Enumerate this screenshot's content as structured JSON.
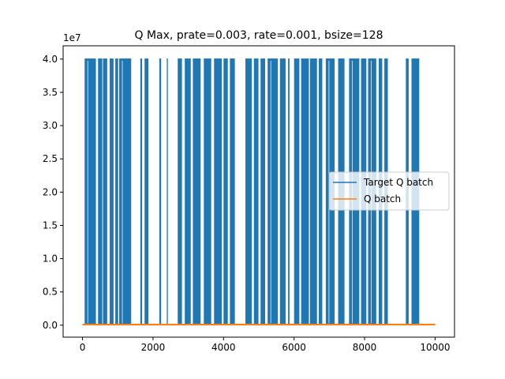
{
  "chart_data": {
    "type": "line",
    "title": "Q Max, prate=0.003, rate=0.001, bsize=128",
    "xlabel": "",
    "ylabel": "",
    "y_offset_label": "1e7",
    "y_scale": 10000000,
    "xlim": [
      -550,
      10550
    ],
    "ylim": [
      -1800000,
      42000000
    ],
    "x_ticks": [
      0,
      2000,
      4000,
      6000,
      8000,
      10000
    ],
    "x_tick_labels": [
      "0",
      "2000",
      "4000",
      "6000",
      "8000",
      "10000"
    ],
    "y_ticks": [
      0,
      5000000,
      10000000,
      15000000,
      20000000,
      25000000,
      30000000,
      35000000,
      40000000
    ],
    "y_tick_labels": [
      "0.0",
      "0.5",
      "1.0",
      "1.5",
      "2.0",
      "2.5",
      "3.0",
      "3.5",
      "4.0"
    ],
    "grid": false,
    "legend": {
      "position": "center-right"
    },
    "series": [
      {
        "name": "Target Q batch",
        "color": "#1f77b4",
        "pattern": "baseline near 0 with frequent spikes to ~4.0e7",
        "baseline": 50000,
        "spike_value": 40000000,
        "spike_ranges": [
          [
            60,
            380
          ],
          [
            440,
            560
          ],
          [
            580,
            700
          ],
          [
            770,
            880
          ],
          [
            930,
            1010
          ],
          [
            1040,
            1380
          ],
          [
            1640,
            1690
          ],
          [
            1760,
            1870
          ],
          [
            2180,
            2230
          ],
          [
            2390,
            2420
          ],
          [
            2700,
            2820
          ],
          [
            2900,
            3070
          ],
          [
            3130,
            3350
          ],
          [
            3440,
            3650
          ],
          [
            3730,
            3950
          ],
          [
            4000,
            4120
          ],
          [
            4180,
            4320
          ],
          [
            4620,
            4800
          ],
          [
            4860,
            4990
          ],
          [
            5050,
            5180
          ],
          [
            5250,
            5540
          ],
          [
            5600,
            5760
          ],
          [
            5830,
            5870
          ],
          [
            6000,
            6150
          ],
          [
            6200,
            6420
          ],
          [
            6450,
            6650
          ],
          [
            6700,
            6800
          ],
          [
            6900,
            7150
          ],
          [
            7250,
            7430
          ],
          [
            7560,
            7850
          ],
          [
            7900,
            8050
          ],
          [
            8100,
            8330
          ],
          [
            8400,
            8500
          ],
          [
            8560,
            8660
          ],
          [
            9170,
            9250
          ],
          [
            9330,
            9550
          ]
        ]
      },
      {
        "name": "Q batch",
        "color": "#ff7f0e",
        "pattern": "flat near 0",
        "value": 100000
      }
    ]
  }
}
